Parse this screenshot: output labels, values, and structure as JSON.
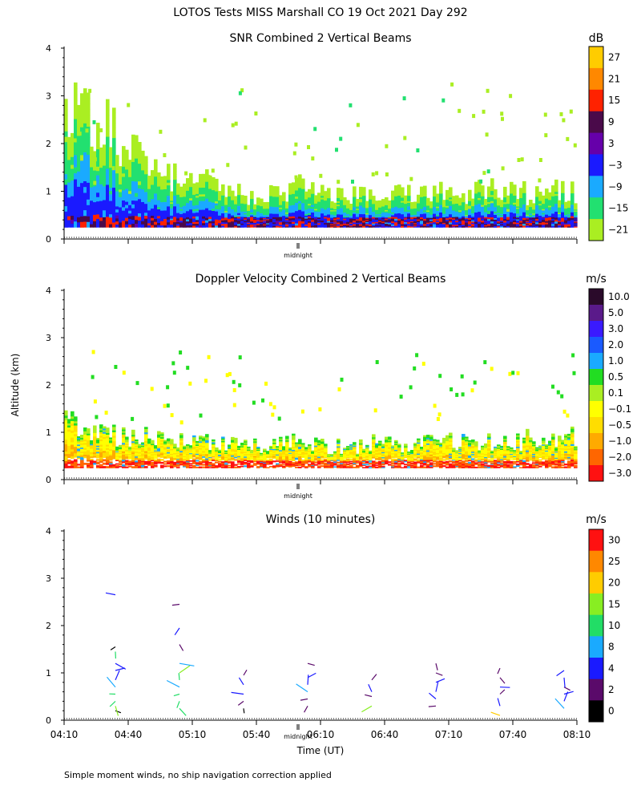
{
  "page_title": "LOTOS Tests MISS Marshall CO  19 Oct 2021 Day 292",
  "y_axis_label": "Altitude (km)",
  "x_axis_label": "Time (UT)",
  "midnight_label": "midnight",
  "footnote": "Simple moment winds, no ship navigation correction applied",
  "chart_data": [
    {
      "type": "heatmap",
      "title": "SNR Combined 2 Vertical Beams",
      "ylabel": "Altitude (km)",
      "xlabel": "Time (UT)",
      "ylim": [
        0,
        4
      ],
      "yticks": [
        "0",
        "1",
        "2",
        "3",
        "4"
      ],
      "colorbar": {
        "unit": "dB",
        "tick_labels": [
          "27",
          "21",
          "15",
          "9",
          "3",
          "−3",
          "−9",
          "−15",
          "−21"
        ],
        "colors": [
          "#ffcc00",
          "#ff8800",
          "#ff2200",
          "#4a0a4a",
          "#6600aa",
          "#1a1aff",
          "#1aaaff",
          "#22e070",
          "#aaee22"
        ]
      },
      "profile_top_km": [
        2.8,
        2.4,
        2.0,
        1.6,
        1.3,
        1.2,
        1.0,
        0.9,
        1.0,
        1.1,
        1.0,
        0.9,
        0.9,
        1.0,
        1.0,
        0.9,
        1.1,
        1.0,
        0.9,
        1.0
      ]
    },
    {
      "type": "heatmap",
      "title": "Doppler Velocity Combined 2 Vertical Beams",
      "ylabel": "Altitude (km)",
      "xlabel": "Time (UT)",
      "ylim": [
        0,
        4
      ],
      "yticks": [
        "0",
        "1",
        "2",
        "3",
        "4"
      ],
      "colorbar": {
        "unit": "m/s",
        "tick_labels": [
          "10.0",
          "5.0",
          "3.0",
          "2.0",
          "1.0",
          "0.5",
          "0.1",
          "−0.1",
          "−0.5",
          "−1.0",
          "−2.0",
          "−3.0"
        ],
        "colors": [
          "#2a0a2a",
          "#5a1a8a",
          "#3a1aff",
          "#1a5aff",
          "#1aaaff",
          "#22dd22",
          "#aaee22",
          "#ffff00",
          "#ffdd00",
          "#ffaa00",
          "#ff6600",
          "#ff1111"
        ]
      },
      "profile_top_km": [
        1.2,
        1.0,
        0.9,
        0.9,
        0.8,
        0.8,
        0.8,
        0.7,
        0.8,
        0.8,
        0.7,
        0.7,
        0.8,
        0.7,
        0.8,
        0.8,
        0.8,
        0.8,
        0.9,
        0.9
      ]
    },
    {
      "type": "scatter",
      "title": "Winds (10 minutes)",
      "ylabel": "Altitude (km)",
      "xlabel": "Time (UT)",
      "ylim": [
        0,
        4
      ],
      "yticks": [
        "0",
        "1",
        "2",
        "3",
        "4"
      ],
      "xlim": [
        "04:10",
        "08:10"
      ],
      "xticks": [
        "04:10",
        "04:40",
        "05:10",
        "05:40",
        "06:10",
        "06:40",
        "07:10",
        "07:40",
        "08:10"
      ],
      "colorbar": {
        "unit": "m/s",
        "tick_labels": [
          "30",
          "25",
          "20",
          "15",
          "10",
          "8",
          "4",
          "2",
          "0"
        ],
        "colors": [
          "#ff1111",
          "#ff8800",
          "#ffcc00",
          "#88ee22",
          "#22dd66",
          "#1aaaff",
          "#1a1aff",
          "#5a0a6a",
          "#000000"
        ]
      },
      "profiles": [
        {
          "time_min": 24,
          "heights_km": [
            0.2,
            0.3,
            0.4,
            0.55,
            0.7,
            0.85,
            1.05,
            1.2,
            1.45,
            1.55,
            2.65
          ],
          "speeds_ms": [
            1,
            15,
            12,
            10,
            8,
            6,
            4,
            6,
            12,
            1,
            4
          ]
        },
        {
          "time_min": 54,
          "heights_km": [
            0.25,
            0.4,
            0.55,
            0.7,
            0.85,
            1.0,
            1.2,
            1.6,
            1.95,
            2.45
          ],
          "speeds_ms": [
            14,
            12,
            10,
            8,
            12,
            16,
            8,
            3,
            4,
            2
          ]
        },
        {
          "time_min": 84,
          "heights_km": [
            0.25,
            0.4,
            0.55,
            0.75,
            0.95
          ],
          "speeds_ms": [
            1,
            2,
            6,
            4,
            2
          ]
        },
        {
          "time_min": 114,
          "heights_km": [
            0.3,
            0.45,
            0.6,
            0.75,
            0.9,
            1.2
          ],
          "speeds_ms": [
            3,
            2,
            8,
            6,
            4,
            2
          ]
        },
        {
          "time_min": 144,
          "heights_km": [
            0.3,
            0.5,
            0.6,
            0.85
          ],
          "speeds_ms": [
            15,
            2,
            4,
            3
          ]
        },
        {
          "time_min": 174,
          "heights_km": [
            0.3,
            0.45,
            0.6,
            0.8,
            1.0,
            1.2
          ],
          "speeds_ms": [
            2,
            4,
            6,
            4,
            2,
            3
          ]
        },
        {
          "time_min": 204,
          "heights_km": [
            0.1,
            0.3,
            0.55,
            0.7,
            0.9,
            1.1
          ],
          "speeds_ms": [
            22,
            4,
            2,
            4,
            3,
            2
          ]
        },
        {
          "time_min": 234,
          "heights_km": [
            0.25,
            0.4,
            0.55,
            0.7,
            0.9,
            1.05
          ],
          "speeds_ms": [
            8,
            6,
            4,
            2,
            6,
            4
          ]
        }
      ]
    }
  ]
}
